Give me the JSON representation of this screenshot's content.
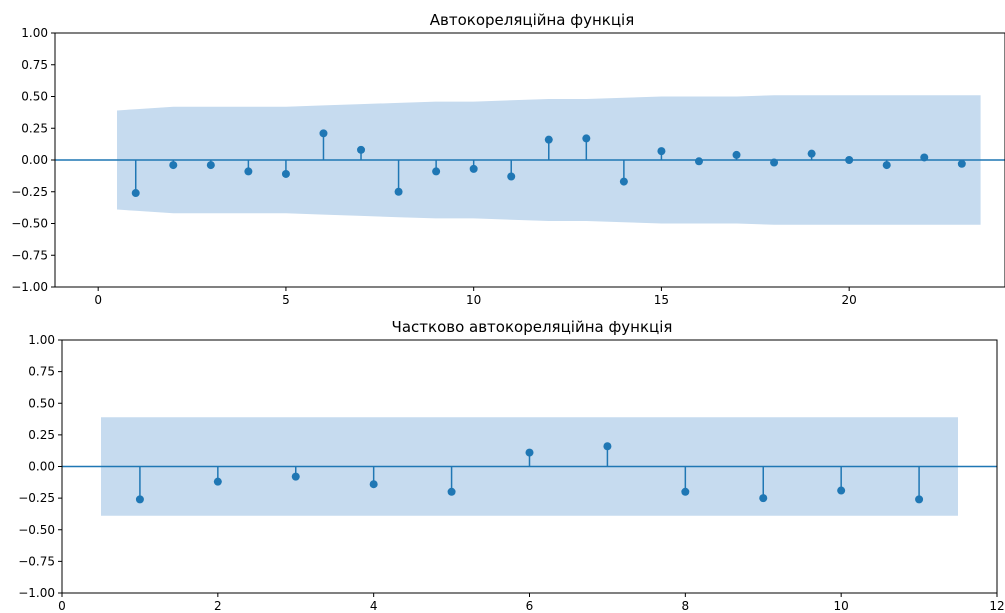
{
  "chart_data": [
    {
      "type": "stem",
      "title": "Автокореляційна функція",
      "xlabel": "",
      "ylabel": "",
      "xlim": [
        -1.15,
        24.15
      ],
      "ylim": [
        -1.0,
        1.0
      ],
      "grid": false,
      "legend": "none",
      "x_ticks": [
        0,
        5,
        10,
        15,
        20
      ],
      "x_tick_labels": [
        "0",
        "5",
        "10",
        "15",
        "20"
      ],
      "y_ticks": [
        1.0,
        0.75,
        0.5,
        0.25,
        0.0,
        -0.25,
        -0.5,
        -0.75,
        -1.0
      ],
      "y_tick_labels": [
        "1.00",
        "0.75",
        "0.50",
        "0.25",
        "0.00",
        "−0.25",
        "−0.50",
        "−0.75",
        "−1.00"
      ],
      "lags": [
        1,
        2,
        3,
        4,
        5,
        6,
        7,
        8,
        9,
        10,
        11,
        12,
        13,
        14,
        15,
        16,
        17,
        18,
        19,
        20,
        21,
        22,
        23
      ],
      "values": [
        -0.26,
        -0.04,
        -0.04,
        -0.09,
        -0.11,
        0.21,
        0.08,
        -0.25,
        -0.09,
        -0.07,
        -0.13,
        0.16,
        0.17,
        -0.17,
        0.07,
        -0.01,
        0.04,
        -0.02,
        0.05,
        0.0,
        -0.04,
        0.02,
        -0.03
      ],
      "confidence_band": {
        "x": [
          0.5,
          1,
          2,
          3,
          4,
          5,
          6,
          7,
          8,
          9,
          10,
          11,
          12,
          13,
          14,
          15,
          16,
          17,
          18,
          19,
          20,
          21,
          22,
          23,
          23.5
        ],
        "half_width": [
          0.39,
          0.4,
          0.42,
          0.42,
          0.42,
          0.42,
          0.43,
          0.44,
          0.45,
          0.46,
          0.46,
          0.47,
          0.48,
          0.48,
          0.49,
          0.5,
          0.5,
          0.5,
          0.51,
          0.51,
          0.51,
          0.51,
          0.51,
          0.51,
          0.51
        ]
      },
      "colors": {
        "stem": "#1f77b4",
        "band": "#c6dbef",
        "zero_line": "#1f77b4"
      }
    },
    {
      "type": "stem",
      "title": "Частково автокореляційна функція",
      "xlabel": "",
      "ylabel": "",
      "xlim": [
        0,
        12
      ],
      "ylim": [
        -1.0,
        1.0
      ],
      "grid": false,
      "legend": "none",
      "x_ticks": [
        0,
        2,
        4,
        6,
        8,
        10,
        12
      ],
      "x_tick_labels": [
        "0",
        "2",
        "4",
        "6",
        "8",
        "10",
        "12"
      ],
      "y_ticks": [
        1.0,
        0.75,
        0.5,
        0.25,
        0.0,
        -0.25,
        -0.5,
        -0.75,
        -1.0
      ],
      "y_tick_labels": [
        "1.00",
        "0.75",
        "0.50",
        "0.25",
        "0.00",
        "−0.25",
        "−0.50",
        "−0.75",
        "−1.00"
      ],
      "lags": [
        1,
        2,
        3,
        4,
        5,
        6,
        7,
        8,
        9,
        10,
        11
      ],
      "values": [
        -0.26,
        -0.12,
        -0.08,
        -0.14,
        -0.2,
        0.11,
        0.16,
        -0.2,
        -0.25,
        -0.19,
        -0.26
      ],
      "confidence_band": {
        "x": [
          0.5,
          11.5
        ],
        "half_width": [
          0.39,
          0.39
        ]
      },
      "colors": {
        "stem": "#1f77b4",
        "band": "#c6dbef",
        "zero_line": "#1f77b4"
      }
    }
  ]
}
